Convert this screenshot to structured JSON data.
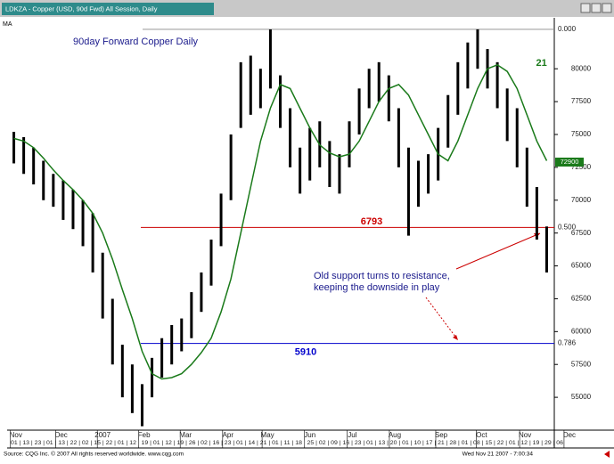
{
  "window_title": "LDKZA - Copper (USD, 90d Fwd) All Session, Daily",
  "study_label": "MA",
  "footer_source": "Source: CQG Inc. © 2007 All rights reserved worldwide. www.cqg.com",
  "footer_time": "Wed Nov 21 2007 - 7:00:34",
  "chart_data": {
    "type": "hilo",
    "title": "90day Forward Copper Daily",
    "color": "#000000",
    "high": [
      75200,
      74800,
      74000,
      73000,
      72000,
      71500,
      70800,
      70000,
      69000,
      66000,
      62500,
      59000,
      57500,
      56000,
      58000,
      59500,
      60500,
      61000,
      63000,
      64500,
      67000,
      70500,
      75000,
      80500,
      81000,
      80000,
      83000,
      79500,
      77000,
      74000,
      75500,
      76000,
      74500,
      73500,
      76000,
      78500,
      80000,
      80500,
      79500,
      77000,
      74000,
      73000,
      73500,
      75500,
      78000,
      80500,
      82000,
      83000,
      81500,
      80500,
      78500,
      77000,
      74000,
      71000,
      68000
    ],
    "low": [
      72800,
      72000,
      71200,
      70000,
      69500,
      68500,
      67800,
      66500,
      64500,
      61000,
      57500,
      55000,
      53800,
      52800,
      55000,
      56500,
      57500,
      58500,
      59500,
      61500,
      63500,
      66500,
      70000,
      75500,
      76500,
      77000,
      78500,
      75500,
      72500,
      70500,
      71500,
      72500,
      71000,
      70500,
      72500,
      75000,
      77000,
      77500,
      76000,
      72500,
      67300,
      69500,
      70500,
      71500,
      74000,
      76500,
      78500,
      80000,
      78500,
      77000,
      74500,
      72500,
      69500,
      67000,
      64500
    ],
    "ma": {
      "label": "21",
      "color": "#1a7a1a",
      "values": [
        74700,
        74500,
        74000,
        73200,
        72300,
        71500,
        70800,
        70000,
        69000,
        67500,
        65500,
        63200,
        61000,
        58500,
        56800,
        56400,
        56500,
        56800,
        57500,
        58400,
        59500,
        61500,
        64000,
        67500,
        71000,
        74500,
        77000,
        78800,
        78500,
        77000,
        75500,
        74200,
        73600,
        73300,
        73500,
        74500,
        76000,
        77500,
        78500,
        78800,
        78000,
        76500,
        75000,
        73500,
        73000,
        74500,
        76500,
        78500,
        80000,
        80300,
        79800,
        78500,
        76500,
        74500,
        73000
      ]
    },
    "xlim": [
      0,
      55
    ],
    "xticks": [
      {
        "value": 0.7,
        "label": "Nov"
      },
      {
        "value": 5.3,
        "label": "Dec"
      },
      {
        "value": 9.5,
        "label": "2007"
      },
      {
        "value": 13.7,
        "label": "Feb"
      },
      {
        "value": 17.9,
        "label": "Mar"
      },
      {
        "value": 22.2,
        "label": "Apr"
      },
      {
        "value": 26.2,
        "label": "May"
      },
      {
        "value": 30.5,
        "label": "Jun"
      },
      {
        "value": 34.8,
        "label": "Jul"
      },
      {
        "value": 39.1,
        "label": "Aug"
      },
      {
        "value": 43.8,
        "label": "Sep"
      },
      {
        "value": 47.9,
        "label": "Oct"
      },
      {
        "value": 52.3,
        "label": "Nov"
      },
      {
        "value": 56.8,
        "label": "Dec"
      }
    ],
    "day_row": "01 | 13 | 23 | 01 | 13 | 22 | 02 | 15 | 22 | 01 | 12 | 19 | 01 | 12 | 19 | 26 | 02 | 16 | 23 | 01 | 14 | 21 | 01 | 11 | 18 | 25 | 02 | 09 | 16 | 23 | 01 | 13 | 20 | 01 | 10 | 17 | 21 | 28 | 01 | 08 | 15 | 22 | 01 | 12 | 19 | 29 | 06",
    "ylim": [
      52500,
      83200
    ],
    "yticks": [
      55000,
      57500,
      60000,
      62500,
      65000,
      67500,
      70000,
      72500,
      75000,
      77500,
      80000
    ],
    "level_tags": [
      {
        "value": 83000,
        "label": "0.000"
      },
      {
        "value": 67930,
        "label": "0.500"
      },
      {
        "value": 59100,
        "label": "0.786"
      }
    ],
    "last_price": {
      "value": 72900,
      "label": "72900",
      "color": "#1a7a1a"
    },
    "hlines": [
      {
        "value": 67930,
        "label": "6793",
        "color": "#cc0000"
      },
      {
        "value": 59100,
        "label": "5910",
        "color": "#0000cc"
      }
    ],
    "annotation": [
      "Old support turns to resistance,",
      "keeping the downside in play"
    ]
  }
}
